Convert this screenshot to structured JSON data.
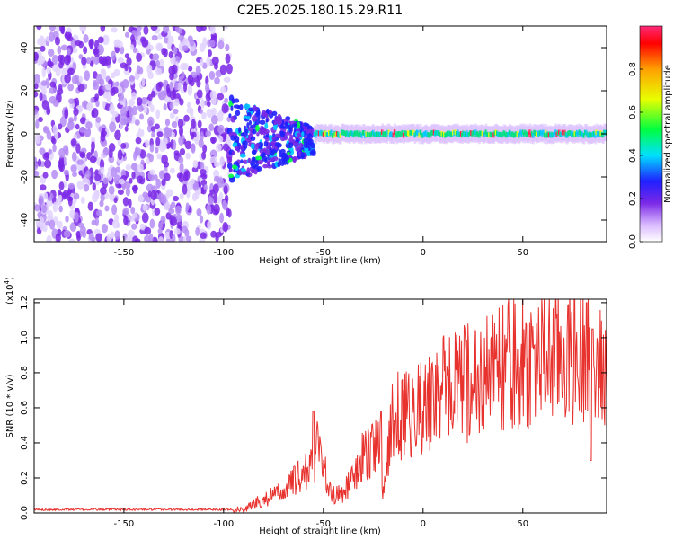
{
  "title": "C2E5.2025.180.15.29.R11",
  "chart_data": [
    {
      "type": "heatmap",
      "xlabel": "Height of straight line (km)",
      "ylabel": "Frequency (Hz)",
      "xlim": [
        -195,
        92
      ],
      "ylim": [
        -50,
        50
      ],
      "x_ticks": [
        -150,
        -100,
        -50,
        0,
        50
      ],
      "y_ticks": [
        -40,
        -20,
        0,
        20,
        40
      ],
      "colorbar": {
        "label": "Normalized spectral amplitude",
        "range": [
          0.0,
          1.0
        ],
        "ticks": [
          "0.0",
          "0.2",
          "0.4",
          "0.6",
          "0.8"
        ],
        "colormap": [
          "#ffffff",
          "#d8b8ff",
          "#7a28e6",
          "#2020ff",
          "#00e0ff",
          "#00ff40",
          "#e8ff00",
          "#ffa000",
          "#ff0000",
          "#ff2a7a"
        ]
      },
      "regions": [
        {
          "x_range": [
            -195,
            -97
          ],
          "freq_range": [
            -50,
            50
          ],
          "pattern": "broadband noise",
          "amplitude": 0.15
        },
        {
          "x_range": [
            -97,
            -55
          ],
          "freq_range": [
            -15,
            10
          ],
          "pattern": "converging blob",
          "amplitude": 0.3
        },
        {
          "x_range": [
            -55,
            92
          ],
          "freq_center": 0,
          "freq_halfwidth": 2,
          "pattern": "carrier line",
          "amplitude": 0.5
        }
      ]
    },
    {
      "type": "line",
      "xlabel": "Height of straight line (km)",
      "ylabel": "SNR (10 * v/v)",
      "y_multiplier": "(x10^4)",
      "xlim": [
        -195,
        92
      ],
      "ylim": [
        0,
        1.22
      ],
      "x_ticks": [
        -150,
        -100,
        -50,
        0,
        50
      ],
      "y_ticks": [
        "0.0",
        "0.2",
        "0.4",
        "0.6",
        "0.8",
        "1.0",
        "1.2"
      ],
      "color": "#e8322e",
      "x": [
        -195,
        -180,
        -160,
        -140,
        -120,
        -100,
        -95,
        -90,
        -85,
        -80,
        -75,
        -70,
        -65,
        -60,
        -55,
        -52,
        -50,
        -48,
        -45,
        -40,
        -35,
        -30,
        -25,
        -22,
        -20,
        -15,
        -10,
        -5,
        0,
        10,
        20,
        30,
        40,
        50,
        60,
        65,
        70,
        75,
        80,
        83,
        85,
        87,
        90,
        92
      ],
      "y": [
        0.02,
        0.02,
        0.02,
        0.02,
        0.02,
        0.02,
        0.02,
        0.02,
        0.05,
        0.08,
        0.1,
        0.12,
        0.18,
        0.22,
        0.28,
        0.45,
        0.3,
        0.15,
        0.1,
        0.12,
        0.2,
        0.32,
        0.38,
        0.45,
        0.1,
        0.55,
        0.55,
        0.58,
        0.6,
        0.7,
        0.73,
        0.78,
        0.83,
        0.85,
        0.88,
        0.9,
        0.9,
        0.88,
        0.9,
        1.05,
        0.5,
        0.85,
        0.8,
        0.82
      ],
      "spikes": [
        {
          "x": -55,
          "y": 0.58
        },
        {
          "x": -21,
          "y": 0.58
        },
        {
          "x": 82,
          "y": 1.2
        },
        {
          "x": 84,
          "y": 0.3
        },
        {
          "x": 85,
          "y": 1.05
        }
      ]
    }
  ]
}
